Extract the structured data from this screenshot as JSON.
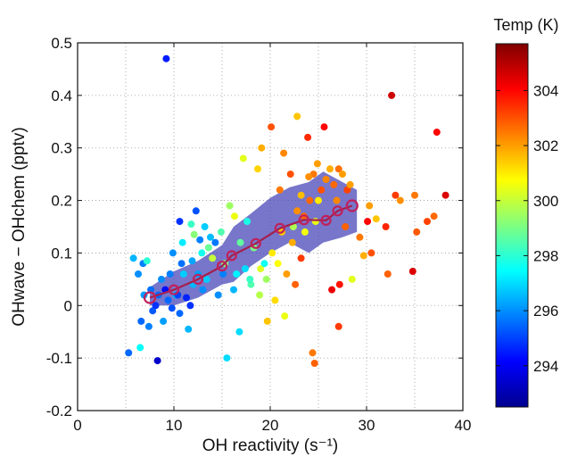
{
  "chart_data": {
    "type": "scatter",
    "xlabel": "OH reactivity (s⁻¹)",
    "ylabel": "OHwave − OHchem (pptv)",
    "xlim": [
      0,
      40
    ],
    "ylim": [
      -0.2,
      0.5
    ],
    "x_ticks": [
      0,
      10,
      20,
      30,
      40
    ],
    "y_ticks": [
      -0.2,
      -0.1,
      0,
      0.1,
      0.2,
      0.3,
      0.4,
      0.5
    ],
    "x_tick_labels": [
      "0",
      "10",
      "20",
      "30",
      "40"
    ],
    "y_tick_labels": [
      "-0.2",
      "-0.1",
      "0",
      "0.1",
      "0.2",
      "0.3",
      "0.4",
      "0.5"
    ],
    "grid": true,
    "colorbar": {
      "label": "Temp (K)",
      "range": [
        292.5,
        305.7
      ],
      "ticks": [
        294,
        296,
        298,
        300,
        302,
        304
      ],
      "tick_labels": [
        "294",
        "296",
        "298",
        "300",
        "302",
        "304"
      ],
      "colormap": "jet"
    },
    "points": [
      [
        9.2,
        0.47,
        294.5
      ],
      [
        5.3,
        -0.09,
        295.5
      ],
      [
        6.5,
        -0.08,
        297.5
      ],
      [
        8.3,
        -0.105,
        293.5
      ],
      [
        5.8,
        0.09,
        296.5
      ],
      [
        6.3,
        0.06,
        296.0
      ],
      [
        6.8,
        0.08,
        295.8
      ],
      [
        7.2,
        0.085,
        298.0
      ],
      [
        6.9,
        0.02,
        296.2
      ],
      [
        7.6,
        0.03,
        295.6
      ],
      [
        7.8,
        -0.01,
        295.3
      ],
      [
        8.1,
        0.0,
        294.8
      ],
      [
        8.4,
        0.02,
        295.5
      ],
      [
        8.7,
        0.05,
        296.0
      ],
      [
        9.1,
        0.03,
        294.3
      ],
      [
        9.4,
        0.01,
        295.5
      ],
      [
        9.8,
        -0.005,
        295.2
      ],
      [
        10.2,
        0.02,
        296.5
      ],
      [
        10.6,
        -0.015,
        295.5
      ],
      [
        11.0,
        0.06,
        296.8
      ],
      [
        11.3,
        0.015,
        294.6
      ],
      [
        11.7,
        0.0,
        294.8
      ],
      [
        12.0,
        0.04,
        296.5
      ],
      [
        12.5,
        0.06,
        296.2
      ],
      [
        13.0,
        0.03,
        296.0
      ],
      [
        13.4,
        0.05,
        296.8
      ],
      [
        6.6,
        -0.03,
        295.5
      ],
      [
        7.4,
        -0.04,
        295.8
      ],
      [
        8.9,
        -0.03,
        296.2
      ],
      [
        9.6,
        0.06,
        295.8
      ],
      [
        10.4,
        0.02,
        295.0
      ],
      [
        10.8,
        0.08,
        295.6
      ],
      [
        11.5,
        -0.045,
        296.5
      ],
      [
        12.3,
        0.18,
        295.2
      ],
      [
        13.2,
        0.15,
        296.8
      ],
      [
        13.8,
        0.13,
        296.6
      ],
      [
        14.3,
        0.12,
        295.7
      ],
      [
        14.6,
        0.02,
        296.0
      ],
      [
        15.1,
        0.06,
        295.8
      ],
      [
        15.5,
        -0.1,
        297.0
      ],
      [
        16.2,
        0.03,
        296.5
      ],
      [
        16.8,
        -0.05,
        297.0
      ],
      [
        17.4,
        0.07,
        297.0
      ],
      [
        18.0,
        0.04,
        298.5
      ],
      [
        12.9,
        0.1,
        297.7
      ],
      [
        11.8,
        0.155,
        298.2
      ],
      [
        14.9,
        0.14,
        298.5
      ],
      [
        15.8,
        0.19,
        299.5
      ],
      [
        16.3,
        0.17,
        300.5
      ],
      [
        16.9,
        0.12,
        298.7
      ],
      [
        17.6,
        0.16,
        297.8
      ],
      [
        18.3,
        0.11,
        299.0
      ],
      [
        19.0,
        0.07,
        300.3
      ],
      [
        19.6,
        0.05,
        299.5
      ],
      [
        20.2,
        0.1,
        301.0
      ],
      [
        20.8,
        0.08,
        300.7
      ],
      [
        21.2,
        0.14,
        301.5
      ],
      [
        21.7,
        0.06,
        302.0
      ],
      [
        22.3,
        0.12,
        301.8
      ],
      [
        22.8,
        0.18,
        302.2
      ],
      [
        23.2,
        0.21,
        301.6
      ],
      [
        23.6,
        0.14,
        300.6
      ],
      [
        24.1,
        0.2,
        302.7
      ],
      [
        24.5,
        0.25,
        302.5
      ],
      [
        24.9,
        0.27,
        302.0
      ],
      [
        25.3,
        0.22,
        303.0
      ],
      [
        25.8,
        0.24,
        302.3
      ],
      [
        26.2,
        0.26,
        301.8
      ],
      [
        26.6,
        0.23,
        302.7
      ],
      [
        27.1,
        0.26,
        302.6
      ],
      [
        27.5,
        0.25,
        302.0
      ],
      [
        28.0,
        0.22,
        303.2
      ],
      [
        20.1,
        0.34,
        303.0
      ],
      [
        22.8,
        0.36,
        301.5
      ],
      [
        23.9,
        0.32,
        303.5
      ],
      [
        25.6,
        0.34,
        304.0
      ],
      [
        19.1,
        0.3,
        301.8
      ],
      [
        21.4,
        0.29,
        302.3
      ],
      [
        18.7,
        0.26,
        301.3
      ],
      [
        17.2,
        0.28,
        300.4
      ],
      [
        32.6,
        0.4,
        304.7
      ],
      [
        37.3,
        0.33,
        304.0
      ],
      [
        33.0,
        0.21,
        303.3
      ],
      [
        33.5,
        0.2,
        302.2
      ],
      [
        35.0,
        0.21,
        302.5
      ],
      [
        38.2,
        0.21,
        304.5
      ],
      [
        30.3,
        0.19,
        302.0
      ],
      [
        31.0,
        0.165,
        301.5
      ],
      [
        29.3,
        0.13,
        302.5
      ],
      [
        30.1,
        0.16,
        304.0
      ],
      [
        32.0,
        0.15,
        303.6
      ],
      [
        35.2,
        0.14,
        302.9
      ],
      [
        36.3,
        0.16,
        303.2
      ],
      [
        37.0,
        0.17,
        302.7
      ],
      [
        34.8,
        0.065,
        304.5
      ],
      [
        32.2,
        0.06,
        302.8
      ],
      [
        30.5,
        0.1,
        303.0
      ],
      [
        29.7,
        0.095,
        301.8
      ],
      [
        28.5,
        0.05,
        300.4
      ],
      [
        27.2,
        0.04,
        303.8
      ],
      [
        26.4,
        0.03,
        304.3
      ],
      [
        27.1,
        -0.04,
        303.3
      ],
      [
        24.6,
        -0.11,
        302.8
      ],
      [
        24.4,
        -0.09,
        302.5
      ],
      [
        23.2,
        0.09,
        303.3
      ],
      [
        22.6,
        0.04,
        302.8
      ],
      [
        21.5,
        -0.02,
        300.5
      ],
      [
        20.5,
        0.01,
        301.2
      ],
      [
        19.7,
        -0.03,
        301.5
      ],
      [
        18.9,
        0.02,
        299.8
      ],
      [
        21.0,
        0.22,
        302.5
      ],
      [
        22.1,
        0.25,
        303.0
      ],
      [
        24.0,
        0.245,
        302.2
      ],
      [
        25.0,
        0.2,
        301.0
      ],
      [
        26.9,
        0.2,
        302.3
      ],
      [
        27.8,
        0.15,
        302.8
      ],
      [
        28.3,
        0.23,
        302.0
      ],
      [
        23.5,
        0.17,
        302.7
      ],
      [
        22.4,
        0.15,
        299.7
      ],
      [
        24.7,
        0.16,
        300.5
      ],
      [
        19.4,
        0.08,
        297.6
      ],
      [
        17.9,
        0.05,
        298.2
      ],
      [
        16.5,
        0.06,
        297.3
      ],
      [
        15.3,
        0.08,
        299.2
      ],
      [
        14.0,
        0.09,
        300.0
      ],
      [
        13.6,
        0.11,
        298.8
      ],
      [
        12.7,
        0.125,
        295.8
      ],
      [
        11.9,
        0.085,
        296.3
      ],
      [
        10.9,
        0.12,
        297.2
      ],
      [
        9.9,
        0.1,
        296.0
      ],
      [
        10.6,
        0.16,
        294.8
      ],
      [
        12.1,
        0.135,
        299.2
      ]
    ],
    "mean_line": {
      "x": [
        7.5,
        10.0,
        12.5,
        15.0,
        16.0,
        18.5,
        21.0,
        23.5,
        25.8,
        27.0,
        28.5
      ],
      "y": [
        0.015,
        0.03,
        0.05,
        0.075,
        0.095,
        0.118,
        0.147,
        0.163,
        0.162,
        0.18,
        0.19
      ]
    },
    "band_upper": [
      [
        7.5,
        0.035
      ],
      [
        10.0,
        0.065
      ],
      [
        12.5,
        0.085
      ],
      [
        15.0,
        0.115
      ],
      [
        16.2,
        0.15
      ],
      [
        18.0,
        0.175
      ],
      [
        20.0,
        0.205
      ],
      [
        22.0,
        0.225
      ],
      [
        24.0,
        0.235
      ],
      [
        25.5,
        0.255
      ],
      [
        27.5,
        0.235
      ],
      [
        29.0,
        0.22
      ]
    ],
    "band_lower": [
      [
        7.5,
        0.0
      ],
      [
        10.0,
        0.0
      ],
      [
        12.5,
        0.015
      ],
      [
        15.0,
        0.04
      ],
      [
        16.2,
        0.045
      ],
      [
        18.0,
        0.075
      ],
      [
        20.0,
        0.1
      ],
      [
        22.0,
        0.12
      ],
      [
        24.0,
        0.1
      ],
      [
        25.5,
        0.12
      ],
      [
        27.5,
        0.13
      ],
      [
        29.0,
        0.14
      ]
    ]
  }
}
